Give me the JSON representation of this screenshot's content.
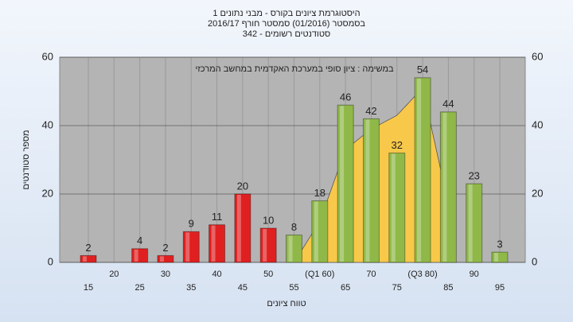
{
  "chart_data": {
    "type": "bar",
    "title_lines": [
      "היסטוגרמת ציונים בקורס - מבני נתונים 1",
      "בסמסטר (01/2016) סמסטר חורף 2016/17",
      "סטודנטים רשומים - 342"
    ],
    "annotation": "במשימה : ציון סופי במערכת האקדמית במחשב המרכזי",
    "x_label": "טווח ציונים",
    "y_label": "מספר סטודנטים",
    "categories": [
      "15",
      "20",
      "25",
      "30",
      "35",
      "40",
      "45",
      "50",
      "55",
      "(Q1 60)",
      "65",
      "70",
      "75",
      "(Q3 80)",
      "85",
      "90",
      "95"
    ],
    "values": [
      2,
      null,
      4,
      2,
      9,
      11,
      20,
      10,
      8,
      18,
      46,
      42,
      32,
      54,
      44,
      23,
      3
    ],
    "colors": [
      "#e02020",
      "#e02020",
      "#e02020",
      "#e02020",
      "#e02020",
      "#e02020",
      "#e02020",
      "#e02020",
      "#8fb848",
      "#8fb848",
      "#8fb848",
      "#8fb848",
      "#8fb848",
      "#8fb848",
      "#8fb848",
      "#8fb848",
      "#8fb848"
    ],
    "area": {
      "color": "#f8c84a",
      "values": [
        null,
        null,
        null,
        null,
        null,
        null,
        null,
        null,
        0,
        12,
        33,
        39,
        43,
        51,
        17,
        null,
        null
      ]
    },
    "ylim": [
      0,
      60
    ],
    "yticks": [
      0,
      20,
      40,
      60
    ],
    "grid": true
  }
}
